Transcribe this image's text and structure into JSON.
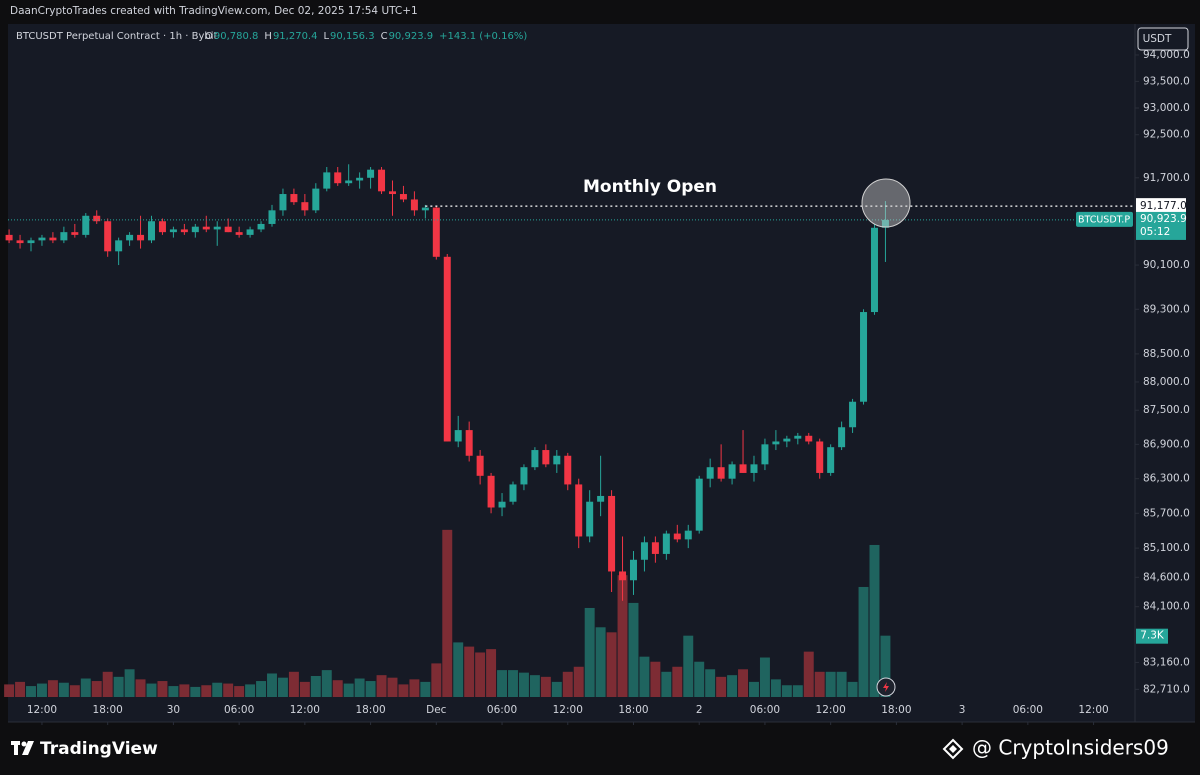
{
  "header": {
    "text": "DaanCryptoTrades created with TradingView.com, Dec 02, 2025 17:54 UTC+1"
  },
  "chart_data": {
    "type": "candlestick",
    "legend": {
      "symbol": "BTCUSDT Perpetual Contract · 1h · Bybit",
      "o": "O",
      "open": "90,780.8",
      "h": "H",
      "high": "91,270.4",
      "l": "L",
      "low": "90,156.3",
      "c": "C",
      "close": "90,923.9",
      "change": "+143.1 (+0.16%)"
    },
    "currency": "USDT",
    "log_scale": true,
    "grid": false,
    "up_color": "#26a69a",
    "down_color": "#f23645",
    "volume_up_color": "#1f645f",
    "volume_down_color": "#7d2c34",
    "open": [
      90650,
      90550,
      90500,
      90550,
      90600,
      90550,
      90700,
      90650,
      91000,
      90900,
      90350,
      90550,
      90650,
      90550,
      90900,
      90700,
      90750,
      90700,
      90800,
      90750,
      90800,
      90700,
      90650,
      90750,
      90850,
      91100,
      91400,
      91250,
      91100,
      91500,
      91800,
      91600,
      91650,
      91700,
      91850,
      91450,
      91400,
      91300,
      91100,
      91150,
      90250,
      86950,
      87150,
      86700,
      86350,
      85800,
      85900,
      86200,
      86500,
      86800,
      86550,
      86700,
      86200,
      85300,
      85900,
      86000,
      84700,
      84550,
      84900,
      85200,
      85000,
      85350,
      85250,
      85400,
      86300,
      86500,
      86300,
      86550,
      86400,
      86550,
      86900,
      86950,
      87000,
      87050,
      86950,
      86400,
      86850,
      87200,
      87650,
      89250,
      90780.8
    ],
    "high": [
      90750,
      90650,
      90600,
      90650,
      90700,
      90800,
      90850,
      91050,
      91100,
      90950,
      90600,
      90700,
      91000,
      91000,
      90950,
      90800,
      90850,
      90850,
      91000,
      90900,
      90950,
      90800,
      90800,
      90900,
      91200,
      91500,
      91500,
      91400,
      91600,
      91900,
      91900,
      91950,
      91800,
      91900,
      91900,
      91650,
      91550,
      91450,
      91200,
      91180,
      90300,
      87400,
      87300,
      86800,
      86400,
      86050,
      86250,
      86550,
      86850,
      86900,
      86800,
      86750,
      86300,
      86100,
      86700,
      86100,
      85300,
      85050,
      85300,
      85300,
      85400,
      85500,
      85500,
      86350,
      86650,
      86900,
      86600,
      87150,
      86700,
      87000,
      87150,
      87050,
      87100,
      87100,
      87000,
      86900,
      87300,
      87700,
      89300,
      90850,
      91270.4
    ],
    "low": [
      90500,
      90400,
      90350,
      90450,
      90500,
      90500,
      90600,
      90600,
      90850,
      90250,
      90100,
      90450,
      90400,
      90500,
      90650,
      90600,
      90650,
      90600,
      90700,
      90450,
      90700,
      90600,
      90600,
      90700,
      90800,
      91000,
      91200,
      91000,
      91050,
      91450,
      91550,
      91550,
      91500,
      91500,
      91400,
      91000,
      91250,
      91000,
      90950,
      90200,
      86950,
      86850,
      86600,
      86200,
      85700,
      85650,
      85850,
      86100,
      86450,
      86500,
      86400,
      86100,
      85100,
      85200,
      85650,
      84350,
      84200,
      84300,
      84700,
      84850,
      84900,
      85200,
      85100,
      85350,
      86150,
      86250,
      86200,
      86400,
      86250,
      86450,
      86800,
      86850,
      86900,
      86900,
      86300,
      86350,
      86800,
      87100,
      87600,
      89200,
      90156.3
    ],
    "close": [
      90550,
      90500,
      90550,
      90600,
      90550,
      90700,
      90650,
      91000,
      90900,
      90350,
      90550,
      90650,
      90550,
      90900,
      90700,
      90750,
      90700,
      90800,
      90750,
      90800,
      90700,
      90650,
      90750,
      90850,
      91100,
      91400,
      91250,
      91100,
      91500,
      91800,
      91600,
      91650,
      91700,
      91850,
      91450,
      91400,
      91300,
      91100,
      91150,
      90250,
      86950,
      87150,
      86700,
      86350,
      85800,
      85900,
      86200,
      86500,
      86800,
      86550,
      86700,
      86200,
      85300,
      85900,
      86000,
      84700,
      84550,
      84900,
      85200,
      85000,
      85350,
      85250,
      85400,
      86300,
      86500,
      86300,
      86550,
      86400,
      86550,
      86900,
      86950,
      87000,
      87050,
      86950,
      86400,
      86850,
      87200,
      87650,
      89250,
      90780,
      90923.9
    ],
    "volume": [
      1500,
      1800,
      1300,
      1600,
      2000,
      1700,
      1400,
      2200,
      1900,
      3000,
      2400,
      3300,
      2100,
      1600,
      1900,
      1300,
      1500,
      1200,
      1400,
      1700,
      1600,
      1300,
      1500,
      1900,
      2800,
      2300,
      3000,
      1800,
      2500,
      3200,
      2000,
      1600,
      2200,
      1900,
      2600,
      2300,
      1500,
      2100,
      1800,
      4000,
      19900,
      6500,
      6000,
      5300,
      5700,
      3200,
      3200,
      2900,
      2600,
      2400,
      1800,
      3000,
      3600,
      10600,
      8300,
      7700,
      14500,
      11200,
      4800,
      4200,
      3000,
      3600,
      7300,
      4200,
      3300,
      2400,
      2600,
      3300,
      1800,
      4700,
      2100,
      1400,
      1400,
      5400,
      3000,
      3000,
      3000,
      1800,
      13100,
      18100,
      7300
    ],
    "volume_lim": [
      0,
      80000
    ],
    "xlim": [
      -0.1,
      102.6
    ],
    "xticks": [
      {
        "value": 3,
        "label": "12:00"
      },
      {
        "value": 9,
        "label": "18:00"
      },
      {
        "value": 15,
        "label": "30"
      },
      {
        "value": 21,
        "label": "06:00"
      },
      {
        "value": 27,
        "label": "12:00"
      },
      {
        "value": 33,
        "label": "18:00"
      },
      {
        "value": 39,
        "label": "Dec"
      },
      {
        "value": 45,
        "label": "06:00"
      },
      {
        "value": 51,
        "label": "12:00"
      },
      {
        "value": 57,
        "label": "18:00"
      },
      {
        "value": 63,
        "label": "2"
      },
      {
        "value": 69,
        "label": "06:00"
      },
      {
        "value": 75,
        "label": "12:00"
      },
      {
        "value": 81,
        "label": "18:00"
      },
      {
        "value": 87,
        "label": "3"
      },
      {
        "value": 93,
        "label": "06:00"
      },
      {
        "value": 99,
        "label": "12:00"
      }
    ],
    "ylim": [
      82200,
      94570
    ],
    "yticks": [
      {
        "value": 94000,
        "label": "94,000.0"
      },
      {
        "value": 93500,
        "label": "93,500.0"
      },
      {
        "value": 93000,
        "label": "93,000.0"
      },
      {
        "value": 92500,
        "label": "92,500.0"
      },
      {
        "value": 91700,
        "label": "91,700.0"
      },
      {
        "value": 90100,
        "label": "90,100.0"
      },
      {
        "value": 89300,
        "label": "89,300.0"
      },
      {
        "value": 88500,
        "label": "88,500.0"
      },
      {
        "value": 88000,
        "label": "88,000.0"
      },
      {
        "value": 87500,
        "label": "87,500.0"
      },
      {
        "value": 86900,
        "label": "86,900.0"
      },
      {
        "value": 86300,
        "label": "86,300.0"
      },
      {
        "value": 85700,
        "label": "85,700.0"
      },
      {
        "value": 85100,
        "label": "85,100.0"
      },
      {
        "value": 84600,
        "label": "84,600.0"
      },
      {
        "value": 84100,
        "label": "84,100.0"
      },
      {
        "value": 83160,
        "label": "83,160.0"
      },
      {
        "value": 82710,
        "label": "82,710.0"
      }
    ],
    "monthly_open": {
      "text": "Monthly Open",
      "value": 91177.0,
      "label": "91,177.0"
    },
    "last_price": {
      "symbol": "BTCUSDT.P",
      "value": 90923.9,
      "label": "90,923.9",
      "countdown": "05:12"
    },
    "last_volume": {
      "value": 7300,
      "label": "7.3K"
    }
  },
  "footer": {
    "brand": "TradingView",
    "handle": "@ CryptoInsiders09"
  }
}
